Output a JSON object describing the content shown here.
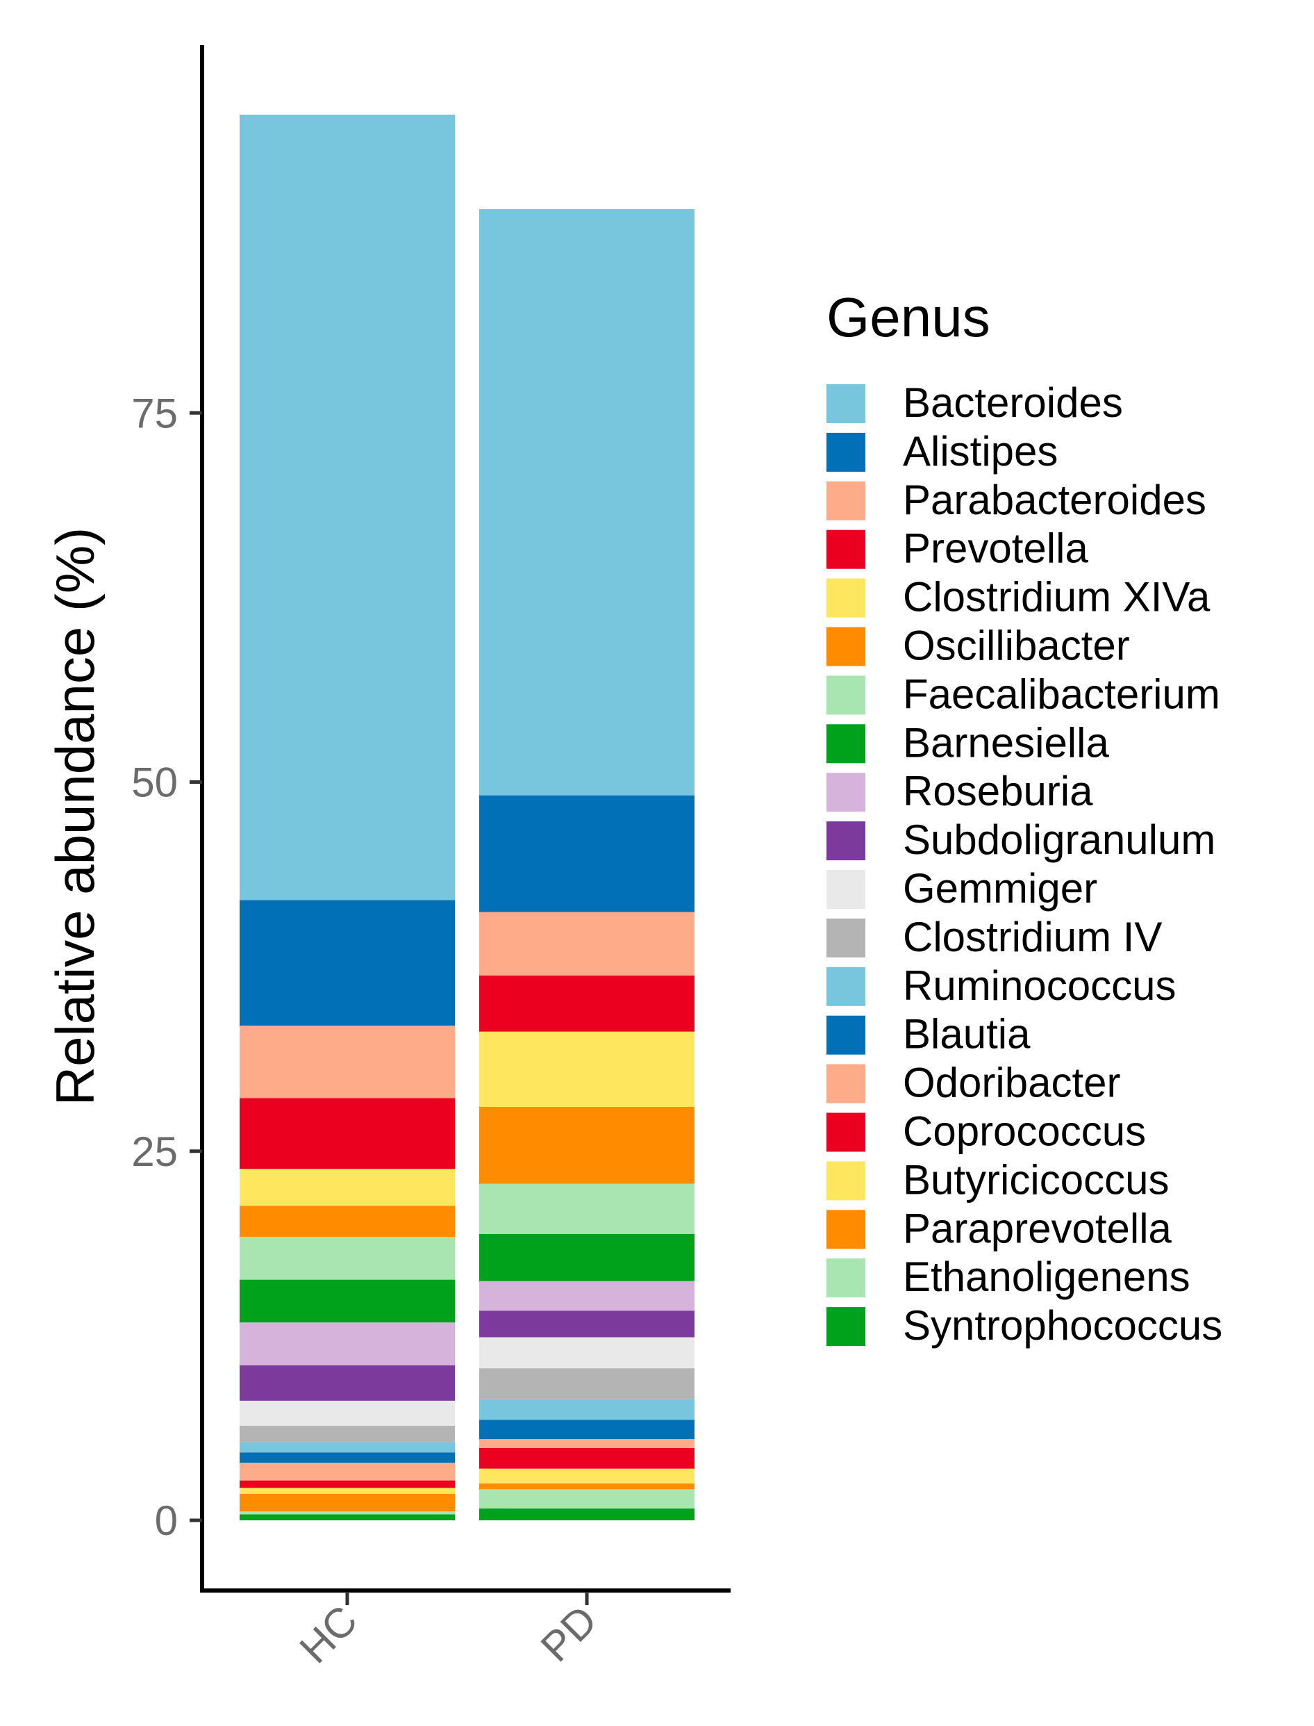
{
  "chart_data": {
    "type": "bar",
    "stacked": true,
    "categories": [
      "HC",
      "PD"
    ],
    "ylabel": "Relative abundance (%)",
    "xlabel": "",
    "ylim": [
      -4.5,
      100.5
    ],
    "yticks": [
      0,
      25,
      50,
      75
    ],
    "grid": false,
    "legend": {
      "title": "Genus",
      "position": "right"
    },
    "series": [
      {
        "name": "Bacteroides",
        "color": "#78C5DE",
        "values": [
          53.2,
          39.7
        ]
      },
      {
        "name": "Alistipes",
        "color": "#0170B6",
        "values": [
          8.5,
          7.9
        ]
      },
      {
        "name": "Parabacteroides",
        "color": "#FDAB89",
        "values": [
          4.9,
          4.3
        ]
      },
      {
        "name": "Prevotella",
        "color": "#EC0020",
        "values": [
          4.8,
          3.8
        ]
      },
      {
        "name": "Clostridium XIVa",
        "color": "#FEE75E",
        "values": [
          2.5,
          5.1
        ]
      },
      {
        "name": "Oscillibacter",
        "color": "#FF8C00",
        "values": [
          2.1,
          5.2
        ]
      },
      {
        "name": "Faecalibacterium",
        "color": "#A8E5B0",
        "values": [
          2.9,
          3.4
        ]
      },
      {
        "name": "Barnesiella",
        "color": "#00A21B",
        "values": [
          2.9,
          3.2
        ]
      },
      {
        "name": "Roseburia",
        "color": "#D6B3DB",
        "values": [
          2.9,
          2.0
        ]
      },
      {
        "name": "Subdoligranulum",
        "color": "#7B3A9C",
        "values": [
          2.4,
          1.8
        ]
      },
      {
        "name": "Gemmiger",
        "color": "#E9E9E9",
        "values": [
          1.7,
          2.1
        ]
      },
      {
        "name": "Clostridium IV",
        "color": "#B4B4B4",
        "values": [
          1.1,
          2.1
        ]
      },
      {
        "name": "Ruminococcus",
        "color": "#78C5DE",
        "values": [
          0.7,
          1.4
        ]
      },
      {
        "name": "Blautia",
        "color": "#0170B6",
        "values": [
          0.7,
          1.3
        ]
      },
      {
        "name": "Odoribacter",
        "color": "#FDAB89",
        "values": [
          1.2,
          0.6
        ]
      },
      {
        "name": "Coprococcus",
        "color": "#EC0020",
        "values": [
          0.5,
          1.4
        ]
      },
      {
        "name": "Butyricicoccus",
        "color": "#FEE75E",
        "values": [
          0.4,
          1.0
        ]
      },
      {
        "name": "Paraprevotella",
        "color": "#FF8C00",
        "values": [
          1.2,
          0.4
        ]
      },
      {
        "name": "Ethanoligenens",
        "color": "#A8E5B0",
        "values": [
          0.2,
          1.3
        ]
      },
      {
        "name": "Syntrophococcus",
        "color": "#00A21B",
        "values": [
          0.4,
          0.8
        ]
      }
    ]
  }
}
